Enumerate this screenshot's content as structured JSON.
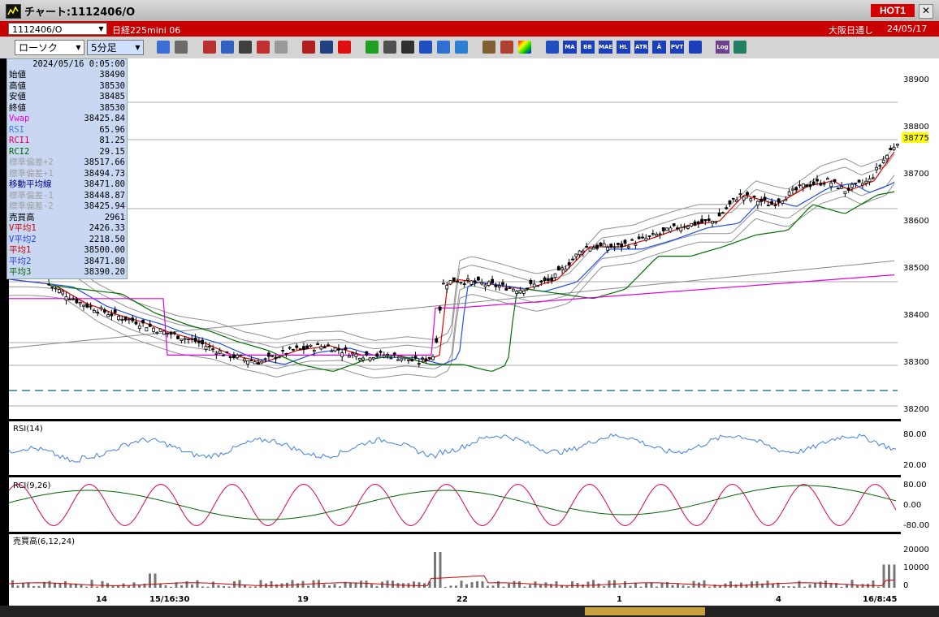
{
  "window": {
    "title": "チャート:1112406/O",
    "hot_label": "HOT1",
    "close_label": "✕"
  },
  "header": {
    "symbol": "1112406/O",
    "instrument": "日経225mini 06",
    "session": "大阪日通し",
    "date": "24/05/17"
  },
  "toolbar": {
    "chart_type": "ローソク",
    "interval": "5分足",
    "indicator_buttons": [
      "MA",
      "BB",
      "MAE",
      "HL",
      "ATR",
      "Ā",
      "PVT",
      "Log"
    ]
  },
  "info_panel": {
    "datetime": "2024/05/16 0:05:00",
    "rows": [
      {
        "label": "始値",
        "value": "38490",
        "color": "#000000"
      },
      {
        "label": "高値",
        "value": "38530",
        "color": "#000000"
      },
      {
        "label": "安値",
        "value": "38485",
        "color": "#000000"
      },
      {
        "label": "終値",
        "value": "38530",
        "color": "#000000"
      },
      {
        "label": "Vwap",
        "value": "38425.84",
        "color": "#e600e6"
      },
      {
        "label": "RSI",
        "value": "65.96",
        "color": "#3f7fe0"
      },
      {
        "label": "RCI1",
        "value": "81.25",
        "color": "#e0005a"
      },
      {
        "label": "RCI2",
        "value": "29.15",
        "color": "#006400"
      },
      {
        "label": "標準偏差+2",
        "value": "38517.66",
        "color": "#a0a0a0"
      },
      {
        "label": "標準偏差+1",
        "value": "38494.73",
        "color": "#a0a0a0"
      },
      {
        "label": "移動平均線",
        "value": "38471.80",
        "color": "#000080"
      },
      {
        "label": "標準偏差-1",
        "value": "38448.87",
        "color": "#a0a0a0"
      },
      {
        "label": "標準偏差-2",
        "value": "38425.94",
        "color": "#a0a0a0"
      },
      {
        "label": "売買高",
        "value": "2961",
        "color": "#000000"
      },
      {
        "label": "V平均1",
        "value": "2426.33",
        "color": "#d00000"
      },
      {
        "label": "V平均2",
        "value": "2218.50",
        "color": "#2040e0"
      },
      {
        "label": "平均1",
        "value": "38500.00",
        "color": "#d00000"
      },
      {
        "label": "平均2",
        "value": "38471.80",
        "color": "#2040e0"
      },
      {
        "label": "平均3",
        "value": "38390.20",
        "color": "#006400"
      }
    ]
  },
  "price_axis": {
    "ticks": [
      "38900",
      "38800",
      "38700",
      "38600",
      "38500",
      "38400",
      "38300",
      "38200"
    ],
    "current": "38775"
  },
  "time_axis": {
    "labels": [
      "14",
      "15/16:30",
      "19",
      "22",
      "1",
      "4",
      "16/8:45"
    ]
  },
  "rsi_panel": {
    "title": "RSI(14)",
    "ticks": [
      "80.00",
      "20.00"
    ]
  },
  "rci_panel": {
    "title": "RCI(9,26)",
    "ticks": [
      "80.00",
      "0.00",
      "-80.00"
    ]
  },
  "volume_panel": {
    "title": "売買高(6,12,24)",
    "ticks": [
      "20000",
      "10000",
      "0"
    ]
  },
  "colors": {
    "candle_up": "#ffffff",
    "ma_short": "#e00000",
    "ma_mid": "#2050e0",
    "ma_long": "#007000",
    "vwap": "#e000e0",
    "bollinger": "#909090"
  }
}
